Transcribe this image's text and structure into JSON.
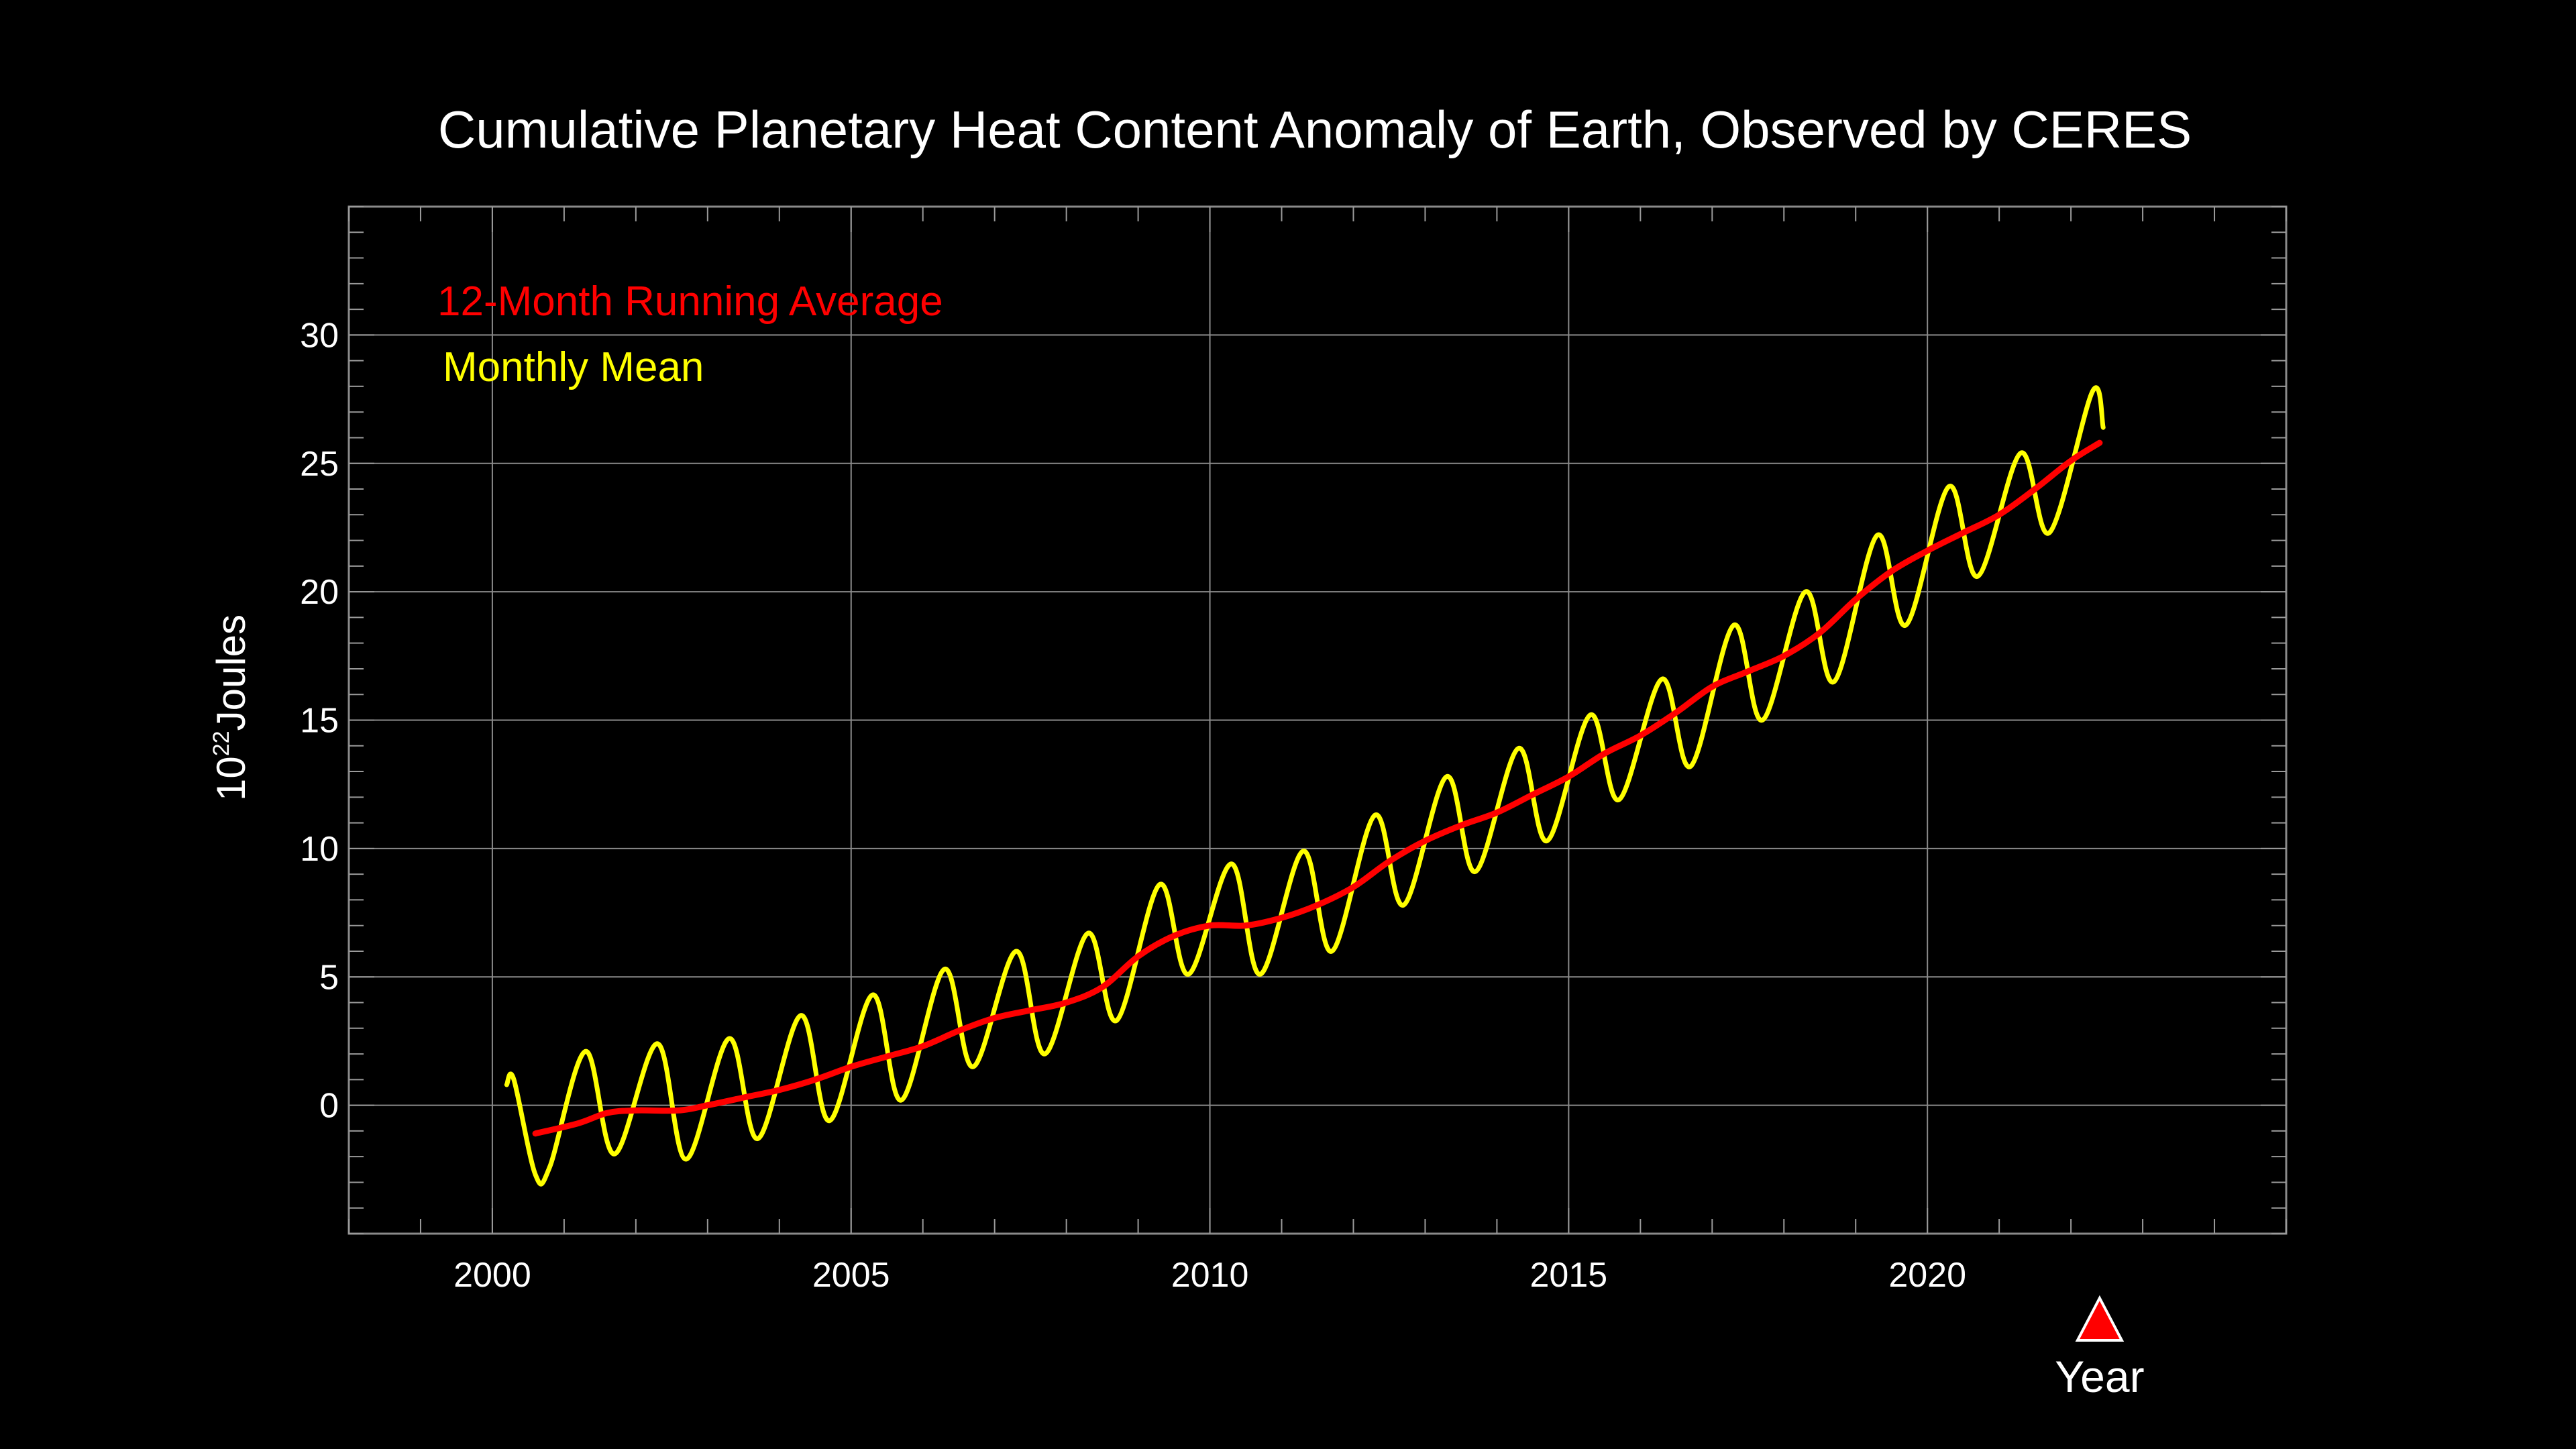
{
  "chart_data": {
    "type": "line",
    "title": "Cumulative Planetary Heat Content Anomaly of Earth, Observed by CERES",
    "xlabel": "Year",
    "ylabel_base": "10",
    "ylabel_exponent": "22",
    "ylabel_unit": "Joules",
    "xlim": [
      1998,
      2025
    ],
    "ylim": [
      -5,
      35
    ],
    "x_ticks": [
      "2000",
      "2005",
      "2010",
      "2015",
      "2020"
    ],
    "x_tick_values": [
      2000,
      2005,
      2010,
      2015,
      2020
    ],
    "y_ticks": [
      "0",
      "5",
      "10",
      "15",
      "20",
      "25",
      "30"
    ],
    "y_tick_values": [
      0,
      5,
      10,
      15,
      20,
      25,
      30
    ],
    "grid": true,
    "legend_position": "top-left",
    "series": [
      {
        "name": "12-Month Running Average",
        "color": "#ff0000",
        "points": [
          [
            2000.6,
            -1.1
          ],
          [
            2001.2,
            -0.7
          ],
          [
            2001.6,
            -0.3
          ],
          [
            2002.0,
            -0.2
          ],
          [
            2002.6,
            -0.2
          ],
          [
            2003.0,
            0.0
          ],
          [
            2003.5,
            0.3
          ],
          [
            2004.0,
            0.6
          ],
          [
            2004.5,
            1.0
          ],
          [
            2005.0,
            1.5
          ],
          [
            2005.5,
            1.9
          ],
          [
            2006.0,
            2.3
          ],
          [
            2006.5,
            2.9
          ],
          [
            2007.0,
            3.4
          ],
          [
            2007.5,
            3.7
          ],
          [
            2008.0,
            4.0
          ],
          [
            2008.5,
            4.6
          ],
          [
            2009.0,
            5.8
          ],
          [
            2009.5,
            6.6
          ],
          [
            2010.0,
            7.0
          ],
          [
            2010.5,
            7.0
          ],
          [
            2011.0,
            7.3
          ],
          [
            2011.5,
            7.8
          ],
          [
            2012.0,
            8.5
          ],
          [
            2012.5,
            9.5
          ],
          [
            2013.0,
            10.3
          ],
          [
            2013.5,
            10.9
          ],
          [
            2014.0,
            11.4
          ],
          [
            2014.5,
            12.1
          ],
          [
            2015.0,
            12.8
          ],
          [
            2015.5,
            13.7
          ],
          [
            2016.0,
            14.4
          ],
          [
            2016.5,
            15.3
          ],
          [
            2017.0,
            16.3
          ],
          [
            2017.5,
            16.9
          ],
          [
            2018.0,
            17.5
          ],
          [
            2018.5,
            18.4
          ],
          [
            2019.0,
            19.7
          ],
          [
            2019.5,
            20.8
          ],
          [
            2020.0,
            21.6
          ],
          [
            2020.5,
            22.3
          ],
          [
            2021.0,
            23.0
          ],
          [
            2021.5,
            24.0
          ],
          [
            2022.0,
            25.1
          ],
          [
            2022.4,
            25.8
          ]
        ]
      },
      {
        "name": "Monthly Mean",
        "color": "#ffff00",
        "points": [
          [
            2000.2,
            0.8
          ],
          [
            2000.3,
            1.0
          ],
          [
            2000.6,
            -2.7
          ],
          [
            2000.8,
            -2.4
          ],
          [
            2001.3,
            2.1
          ],
          [
            2001.7,
            -1.9
          ],
          [
            2002.3,
            2.4
          ],
          [
            2002.7,
            -2.1
          ],
          [
            2003.3,
            2.6
          ],
          [
            2003.7,
            -1.3
          ],
          [
            2004.3,
            3.5
          ],
          [
            2004.7,
            -0.6
          ],
          [
            2005.3,
            4.3
          ],
          [
            2005.7,
            0.2
          ],
          [
            2006.3,
            5.3
          ],
          [
            2006.7,
            1.5
          ],
          [
            2007.3,
            6.0
          ],
          [
            2007.7,
            2.0
          ],
          [
            2008.3,
            6.7
          ],
          [
            2008.7,
            3.3
          ],
          [
            2009.3,
            8.6
          ],
          [
            2009.7,
            5.1
          ],
          [
            2010.3,
            9.4
          ],
          [
            2010.7,
            5.1
          ],
          [
            2011.3,
            9.9
          ],
          [
            2011.7,
            6.0
          ],
          [
            2012.3,
            11.3
          ],
          [
            2012.7,
            7.8
          ],
          [
            2013.3,
            12.8
          ],
          [
            2013.7,
            9.1
          ],
          [
            2014.3,
            13.9
          ],
          [
            2014.7,
            10.3
          ],
          [
            2015.3,
            15.2
          ],
          [
            2015.7,
            11.9
          ],
          [
            2016.3,
            16.6
          ],
          [
            2016.7,
            13.2
          ],
          [
            2017.3,
            18.7
          ],
          [
            2017.7,
            15.0
          ],
          [
            2018.3,
            20.0
          ],
          [
            2018.7,
            16.5
          ],
          [
            2019.3,
            22.2
          ],
          [
            2019.7,
            18.7
          ],
          [
            2020.3,
            24.1
          ],
          [
            2020.7,
            20.6
          ],
          [
            2021.3,
            25.4
          ],
          [
            2021.7,
            22.3
          ],
          [
            2022.3,
            27.8
          ],
          [
            2022.45,
            26.4
          ]
        ]
      }
    ],
    "marker": {
      "shape": "triangle",
      "color": "#ff0000",
      "x": 2022.4
    }
  }
}
